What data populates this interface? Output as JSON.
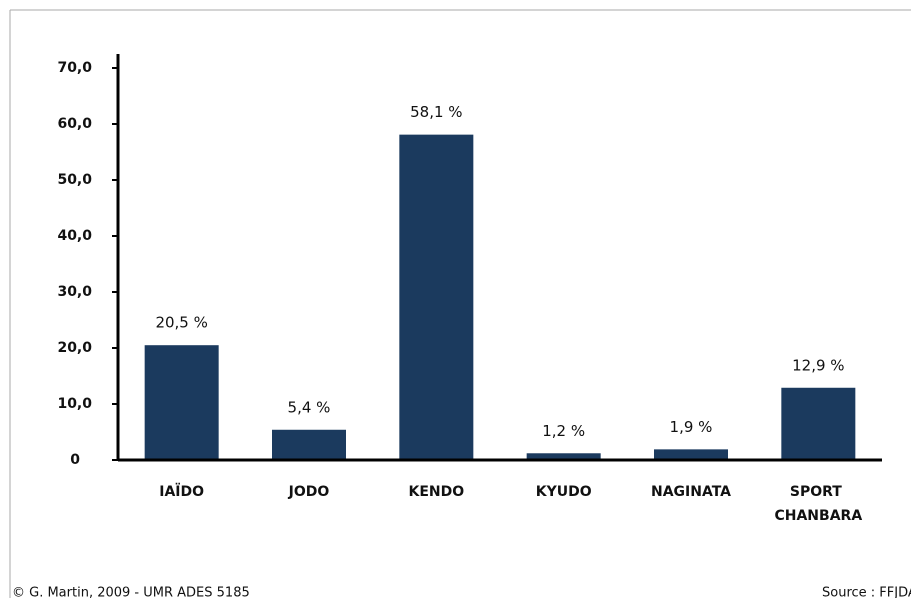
{
  "chart_data": {
    "type": "bar",
    "categories": [
      "IAÏDO",
      "JODO",
      "KENDO",
      "KYUDO",
      "NAGINATA",
      "SPORT CHANBARA"
    ],
    "values": [
      20.5,
      5.4,
      58.1,
      1.2,
      1.9,
      12.9
    ],
    "value_labels": [
      "20,5 %",
      "5,4 %",
      "58,1 %",
      "1,2 %",
      "1,9 %",
      "12,9 %"
    ],
    "color": "#1b3a5e",
    "ylim": [
      0,
      70
    ],
    "yticks": [
      0,
      {
        "value": 10,
        "label": "10,0"
      },
      {
        "value": 20,
        "label": "20,0"
      },
      {
        "value": 30,
        "label": "30,0"
      },
      {
        "value": 40,
        "label": "40,0"
      },
      {
        "value": 50,
        "label": "50,0"
      },
      {
        "value": 60,
        "label": "60,0"
      },
      {
        "value": 70,
        "label": "70,0"
      }
    ],
    "grid": false
  },
  "footer": {
    "credit": "© G. Martin, 2009 - UMR ADES 5185",
    "source": "Source : FFJDA"
  }
}
